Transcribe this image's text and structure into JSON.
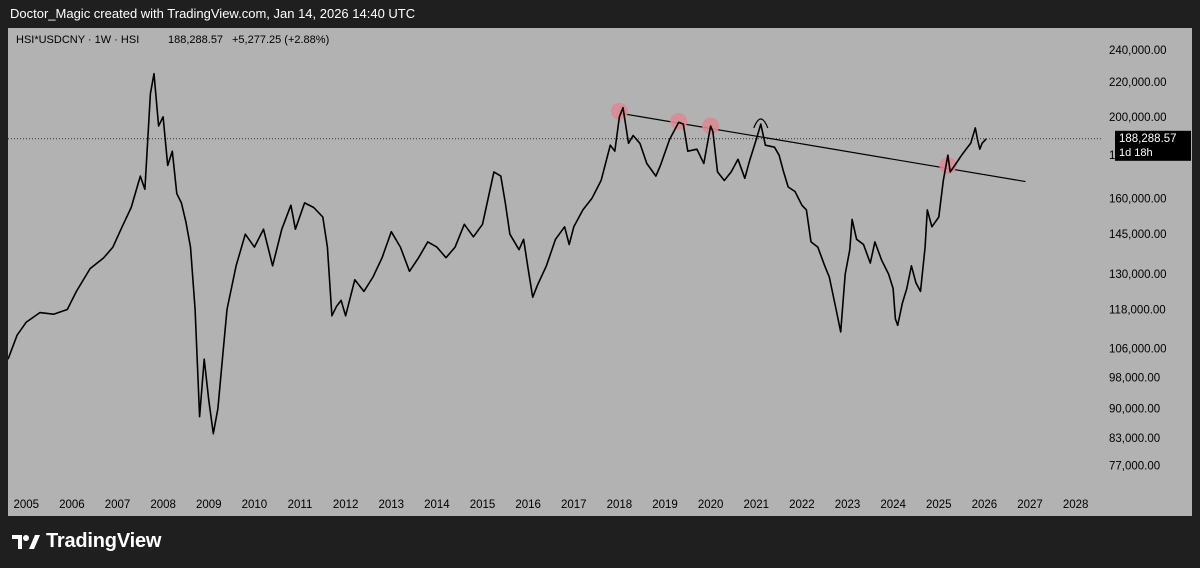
{
  "header": {
    "attribution": "Doctor_Magic created with TradingView.com, Jan 14, 2026 14:40 UTC"
  },
  "legend": {
    "symbol": "HSI*USDCNY · 1W · HSI",
    "last": "188,288.57",
    "change": "+5,277.25 (+2.88%)"
  },
  "price_badge": {
    "price": "188,288.57",
    "countdown": "1d 18h"
  },
  "footer": {
    "brand": "TradingView"
  },
  "colors": {
    "background": "#1f1f20",
    "panel": "#b2b2b2",
    "line": "#000000",
    "marker": "#d98a94"
  },
  "chart_data": {
    "type": "line",
    "title": "HSI*USDCNY · 1W · HSI",
    "y_scale": "log",
    "ylim": [
      72000,
      255000
    ],
    "xlim": [
      2004.6,
      2028.6
    ],
    "y_ticks": [
      {
        "value": 240000,
        "label": "240,000.00"
      },
      {
        "value": 220000,
        "label": "220,000.00"
      },
      {
        "value": 200000,
        "label": "200,000.00"
      },
      {
        "value": 180000,
        "label": "180,000.00"
      },
      {
        "value": 160000,
        "label": "160,000.00"
      },
      {
        "value": 145000,
        "label": "145,000.00"
      },
      {
        "value": 130000,
        "label": "130,000.00"
      },
      {
        "value": 118000,
        "label": "118,000.00"
      },
      {
        "value": 106000,
        "label": "106,000.00"
      },
      {
        "value": 98000,
        "label": "98,000.00"
      },
      {
        "value": 90000,
        "label": "90,000.00"
      },
      {
        "value": 83000,
        "label": "83,000.00"
      },
      {
        "value": 77000,
        "label": "77,000.00"
      }
    ],
    "x_ticks": [
      {
        "value": 2005,
        "label": "2005"
      },
      {
        "value": 2006,
        "label": "2006"
      },
      {
        "value": 2007,
        "label": "2007"
      },
      {
        "value": 2008,
        "label": "2008"
      },
      {
        "value": 2009,
        "label": "2009"
      },
      {
        "value": 2010,
        "label": "2010"
      },
      {
        "value": 2011,
        "label": "2011"
      },
      {
        "value": 2012,
        "label": "2012"
      },
      {
        "value": 2013,
        "label": "2013"
      },
      {
        "value": 2014,
        "label": "2014"
      },
      {
        "value": 2015,
        "label": "2015"
      },
      {
        "value": 2016,
        "label": "2016"
      },
      {
        "value": 2017,
        "label": "2017"
      },
      {
        "value": 2018,
        "label": "2018"
      },
      {
        "value": 2019,
        "label": "2019"
      },
      {
        "value": 2020,
        "label": "2020"
      },
      {
        "value": 2021,
        "label": "2021"
      },
      {
        "value": 2022,
        "label": "2022"
      },
      {
        "value": 2023,
        "label": "2023"
      },
      {
        "value": 2024,
        "label": "2024"
      },
      {
        "value": 2025,
        "label": "2025"
      },
      {
        "value": 2026,
        "label": "2026"
      },
      {
        "value": 2027,
        "label": "2027"
      },
      {
        "value": 2028,
        "label": "2028"
      }
    ],
    "series": [
      {
        "points": [
          [
            2004.6,
            103000
          ],
          [
            2004.8,
            110000
          ],
          [
            2005.0,
            114000
          ],
          [
            2005.3,
            117000
          ],
          [
            2005.6,
            116500
          ],
          [
            2005.9,
            118000
          ],
          [
            2006.1,
            124000
          ],
          [
            2006.4,
            132000
          ],
          [
            2006.7,
            136000
          ],
          [
            2006.9,
            140000
          ],
          [
            2007.1,
            148000
          ],
          [
            2007.3,
            156000
          ],
          [
            2007.5,
            170000
          ],
          [
            2007.6,
            164000
          ],
          [
            2007.72,
            213000
          ],
          [
            2007.8,
            225000
          ],
          [
            2007.9,
            195000
          ],
          [
            2008.0,
            200000
          ],
          [
            2008.1,
            175000
          ],
          [
            2008.2,
            182000
          ],
          [
            2008.3,
            162000
          ],
          [
            2008.4,
            158000
          ],
          [
            2008.5,
            150000
          ],
          [
            2008.6,
            140000
          ],
          [
            2008.7,
            118000
          ],
          [
            2008.8,
            88000
          ],
          [
            2008.9,
            103000
          ],
          [
            2009.0,
            92000
          ],
          [
            2009.1,
            84000
          ],
          [
            2009.2,
            90000
          ],
          [
            2009.3,
            103000
          ],
          [
            2009.4,
            118000
          ],
          [
            2009.6,
            133000
          ],
          [
            2009.8,
            145000
          ],
          [
            2010.0,
            140000
          ],
          [
            2010.2,
            147000
          ],
          [
            2010.4,
            133000
          ],
          [
            2010.6,
            147000
          ],
          [
            2010.8,
            157000
          ],
          [
            2010.9,
            147000
          ],
          [
            2011.1,
            158000
          ],
          [
            2011.3,
            156000
          ],
          [
            2011.5,
            152000
          ],
          [
            2011.6,
            140000
          ],
          [
            2011.7,
            116000
          ],
          [
            2011.8,
            119000
          ],
          [
            2011.9,
            121000
          ],
          [
            2012.0,
            116000
          ],
          [
            2012.2,
            128000
          ],
          [
            2012.4,
            124000
          ],
          [
            2012.6,
            129000
          ],
          [
            2012.8,
            136000
          ],
          [
            2013.0,
            146000
          ],
          [
            2013.2,
            140000
          ],
          [
            2013.4,
            131000
          ],
          [
            2013.6,
            136000
          ],
          [
            2013.8,
            142000
          ],
          [
            2014.0,
            140000
          ],
          [
            2014.2,
            136000
          ],
          [
            2014.4,
            140000
          ],
          [
            2014.6,
            149000
          ],
          [
            2014.8,
            144000
          ],
          [
            2015.0,
            149000
          ],
          [
            2015.25,
            172000
          ],
          [
            2015.4,
            170000
          ],
          [
            2015.5,
            158000
          ],
          [
            2015.6,
            145000
          ],
          [
            2015.8,
            139000
          ],
          [
            2015.9,
            143000
          ],
          [
            2016.0,
            132000
          ],
          [
            2016.1,
            122000
          ],
          [
            2016.2,
            126000
          ],
          [
            2016.4,
            133000
          ],
          [
            2016.6,
            143000
          ],
          [
            2016.8,
            148000
          ],
          [
            2016.9,
            141000
          ],
          [
            2017.0,
            148000
          ],
          [
            2017.2,
            155000
          ],
          [
            2017.4,
            160000
          ],
          [
            2017.6,
            168000
          ],
          [
            2017.8,
            185000
          ],
          [
            2017.9,
            182000
          ],
          [
            2018.0,
            200000
          ],
          [
            2018.08,
            205000
          ],
          [
            2018.2,
            186000
          ],
          [
            2018.3,
            190000
          ],
          [
            2018.45,
            186000
          ],
          [
            2018.6,
            176000
          ],
          [
            2018.8,
            170000
          ],
          [
            2018.9,
            175000
          ],
          [
            2019.1,
            188000
          ],
          [
            2019.3,
            197000
          ],
          [
            2019.4,
            196000
          ],
          [
            2019.5,
            182000
          ],
          [
            2019.7,
            183000
          ],
          [
            2019.85,
            176000
          ],
          [
            2020.0,
            195000
          ],
          [
            2020.05,
            192000
          ],
          [
            2020.15,
            172000
          ],
          [
            2020.3,
            168000
          ],
          [
            2020.45,
            172000
          ],
          [
            2020.6,
            178000
          ],
          [
            2020.75,
            169000
          ],
          [
            2020.85,
            177000
          ],
          [
            2021.0,
            188000
          ],
          [
            2021.1,
            196000
          ],
          [
            2021.2,
            185000
          ],
          [
            2021.4,
            184000
          ],
          [
            2021.5,
            180000
          ],
          [
            2021.6,
            172000
          ],
          [
            2021.7,
            165000
          ],
          [
            2021.85,
            163000
          ],
          [
            2022.0,
            157000
          ],
          [
            2022.1,
            155000
          ],
          [
            2022.2,
            142000
          ],
          [
            2022.35,
            140000
          ],
          [
            2022.5,
            133000
          ],
          [
            2022.6,
            129000
          ],
          [
            2022.75,
            118000
          ],
          [
            2022.85,
            111000
          ],
          [
            2022.95,
            130000
          ],
          [
            2023.05,
            139000
          ],
          [
            2023.1,
            151000
          ],
          [
            2023.2,
            143000
          ],
          [
            2023.35,
            141000
          ],
          [
            2023.5,
            134000
          ],
          [
            2023.6,
            142000
          ],
          [
            2023.75,
            135000
          ],
          [
            2023.9,
            130000
          ],
          [
            2024.0,
            125000
          ],
          [
            2024.05,
            115000
          ],
          [
            2024.1,
            113000
          ],
          [
            2024.2,
            120000
          ],
          [
            2024.3,
            125000
          ],
          [
            2024.4,
            133000
          ],
          [
            2024.5,
            127000
          ],
          [
            2024.6,
            124000
          ],
          [
            2024.7,
            140000
          ],
          [
            2024.75,
            155000
          ],
          [
            2024.85,
            148000
          ],
          [
            2025.0,
            152000
          ],
          [
            2025.1,
            168000
          ],
          [
            2025.2,
            180000
          ],
          [
            2025.25,
            172000
          ],
          [
            2025.35,
            175000
          ],
          [
            2025.5,
            180000
          ],
          [
            2025.6,
            183000
          ],
          [
            2025.7,
            186000
          ],
          [
            2025.8,
            194000
          ],
          [
            2025.85,
            188000
          ],
          [
            2025.9,
            183000
          ],
          [
            2025.95,
            186000
          ],
          [
            2026.04,
            188288.57
          ]
        ]
      }
    ],
    "trendline": {
      "from": [
        2018.0,
        202000
      ],
      "to": [
        2026.9,
        167500
      ]
    },
    "touch_markers": [
      {
        "x": 2018.0,
        "y": 203000
      },
      {
        "x": 2019.3,
        "y": 197500
      },
      {
        "x": 2020.0,
        "y": 195000
      },
      {
        "x": 2025.2,
        "y": 175000
      }
    ],
    "arc_annotation": {
      "x": 2021.1,
      "y": 195000
    },
    "current_price_line": 188288.57
  }
}
